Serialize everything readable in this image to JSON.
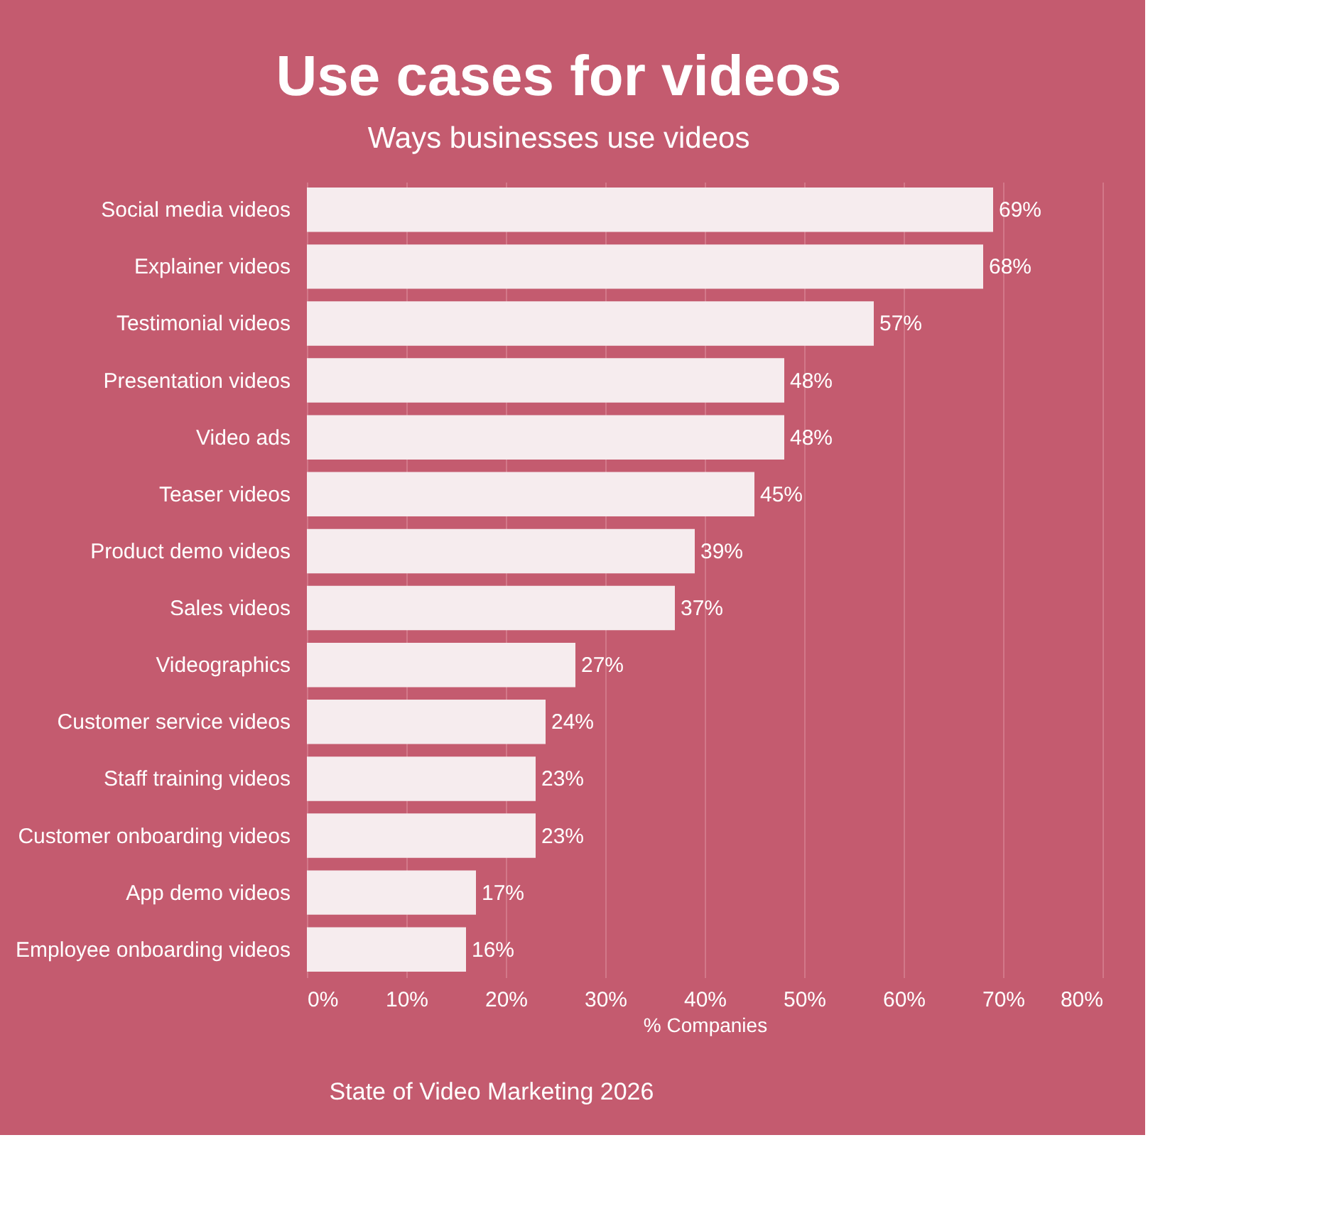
{
  "chart_data": {
    "type": "bar",
    "orientation": "horizontal",
    "title": "Use cases for videos",
    "subtitle": "Ways businesses use videos",
    "xlabel": "% Companies",
    "categories": [
      "Social media videos",
      "Explainer videos",
      "Testimonial videos",
      "Presentation videos",
      "Video ads",
      "Teaser videos",
      "Product demo videos",
      "Sales videos",
      "Videographics",
      "Customer service videos",
      "Staff training videos",
      "Customer onboarding videos",
      "App demo videos",
      "Employee onboarding videos"
    ],
    "values": [
      69,
      68,
      57,
      48,
      48,
      45,
      39,
      37,
      27,
      24,
      23,
      23,
      17,
      16
    ],
    "value_labels": [
      "69%",
      "68%",
      "57%",
      "48%",
      "48%",
      "45%",
      "39%",
      "37%",
      "27%",
      "24%",
      "23%",
      "23%",
      "17%",
      "16%"
    ],
    "color": "#f6ecee",
    "xlim": [
      0,
      80
    ],
    "xticks": [
      {
        "value": 0,
        "label": "0%"
      },
      {
        "value": 10,
        "label": "10%"
      },
      {
        "value": 20,
        "label": "20%"
      },
      {
        "value": 30,
        "label": "30%"
      },
      {
        "value": 40,
        "label": "40%"
      },
      {
        "value": 50,
        "label": "50%"
      },
      {
        "value": 60,
        "label": "60%"
      },
      {
        "value": 70,
        "label": "70%"
      },
      {
        "value": 80,
        "label": "80%"
      }
    ],
    "grid": "x",
    "annotations": [
      "State of Video Marketing 2026"
    ]
  }
}
